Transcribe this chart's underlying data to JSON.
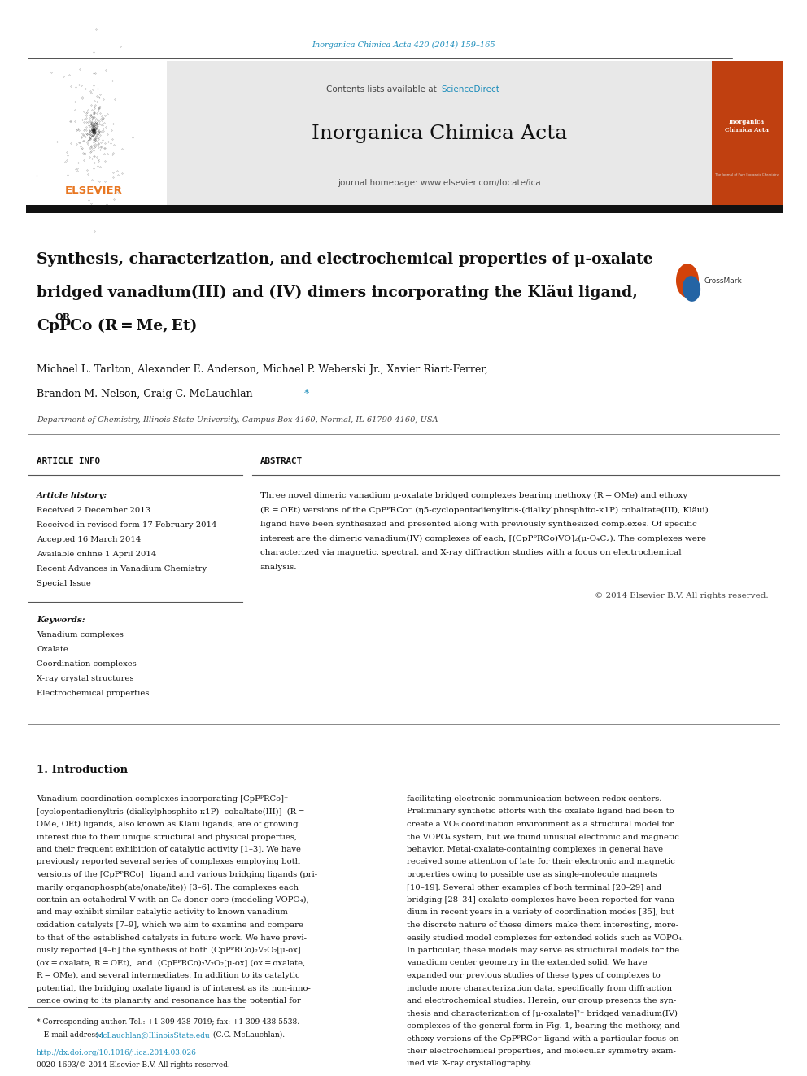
{
  "page_width": 9.92,
  "page_height": 13.23,
  "dpi": 100,
  "bg_color": "#ffffff",
  "journal_ref": "Inorganica Chimica Acta 420 (2014) 159–165",
  "journal_ref_color": "#1a8cba",
  "journal_name": "Inorganica Chimica Acta",
  "sciencedirect_color": "#1a8cba",
  "homepage_line": "journal homepage: www.elsevier.com/locate/ica",
  "elsevier_text": "ELSEVIER",
  "elsevier_color": "#e87722",
  "title_line1": "Synthesis, characterization, and electrochemical properties of μ-oxalate",
  "title_line2": "bridged vanadium(III) and (IV) dimers incorporating the Kläui ligand,",
  "title_line3_pre": "CpP",
  "title_line3_sup": "OR",
  "title_line3_post": "Co (R = Me, Et)",
  "authors_line1": "Michael L. Tarlton, Alexander E. Anderson, Michael P. Weberski Jr., Xavier Riart-Ferrer,",
  "authors_line2": "Brandon M. Nelson, Craig C. McLauchlan *",
  "affiliation": "Department of Chemistry, Illinois State University, Campus Box 4160, Normal, IL 61790-4160, USA",
  "article_info_header": "ARTICLE INFO",
  "abstract_header": "ABSTRACT",
  "article_history_label": "Article history:",
  "history_lines": [
    "Received 2 December 2013",
    "Received in revised form 17 February 2014",
    "Accepted 16 March 2014",
    "Available online 1 April 2014",
    "Recent Advances in Vanadium Chemistry",
    "Special Issue"
  ],
  "keywords_label": "Keywords:",
  "keywords": [
    "Vanadium complexes",
    "Oxalate",
    "Coordination complexes",
    "X-ray crystal structures",
    "Electrochemical properties"
  ],
  "abstract_lines": [
    "Three novel dimeric vanadium μ-oxalate bridged complexes bearing methoxy (R = OMe) and ethoxy",
    "(R = OEt) versions of the CpPᴾRCo⁻ (η5-cyclopentadienyltris-(dialkylphosphito-κ1P) cobaltate(III), Kläui)",
    "ligand have been synthesized and presented along with previously synthesized complexes. Of specific",
    "interest are the dimeric vanadium(IV) complexes of each, [(CpPᴾRCo)VO]₂(μ-O₄C₂). The complexes were",
    "characterized via magnetic, spectral, and X-ray diffraction studies with a focus on electrochemical",
    "analysis."
  ],
  "copyright": "© 2014 Elsevier B.V. All rights reserved.",
  "intro_header": "1. Introduction",
  "intro_col1_lines": [
    "Vanadium coordination complexes incorporating [CpPᴾRCo]⁻",
    "[cyclopentadienyltris-(dialkylphosphito-κ1P)  cobaltate(III)]  (R =",
    "OMe, OEt) ligands, also known as Kläui ligands, are of growing",
    "interest due to their unique structural and physical properties,",
    "and their frequent exhibition of catalytic activity [1–3]. We have",
    "previously reported several series of complexes employing both",
    "versions of the [CpPᴾRCo]⁻ ligand and various bridging ligands (pri-",
    "marily organophosph(ate/onate/ite)) [3–6]. The complexes each",
    "contain an octahedral V with an O₆ donor core (modeling VOPO₄),",
    "and may exhibit similar catalytic activity to known vanadium",
    "oxidation catalysts [7–9], which we aim to examine and compare",
    "to that of the established catalysts in future work. We have previ-",
    "ously reported [4–6] the synthesis of both (CpPᴾRCo)₂V₂O₂[μ-ox]",
    "(ox = oxalate, R = OEt),  and  (CpPᴾRCo)₂V₂O₂[μ-ox] (ox = oxalate,",
    "R = OMe), and several intermediates. In addition to its catalytic",
    "potential, the bridging oxalate ligand is of interest as its non-inno-",
    "cence owing to its planarity and resonance has the potential for"
  ],
  "intro_col2_lines": [
    "facilitating electronic communication between redox centers.",
    "Preliminary synthetic efforts with the oxalate ligand had been to",
    "create a VO₆ coordination environment as a structural model for",
    "the VOPO₄ system, but we found unusual electronic and magnetic",
    "behavior. Metal-oxalate-containing complexes in general have",
    "received some attention of late for their electronic and magnetic",
    "properties owing to possible use as single-molecule magnets",
    "[10–19]. Several other examples of both terminal [20–29] and",
    "bridging [28–34] oxalato complexes have been reported for vana-",
    "dium in recent years in a variety of coordination modes [35], but",
    "the discrete nature of these dimers make them interesting, more-",
    "easily studied model complexes for extended solids such as VOPO₄.",
    "In particular, these models may serve as structural models for the",
    "vanadium center geometry in the extended solid. We have",
    "expanded our previous studies of these types of complexes to",
    "include more characterization data, specifically from diffraction",
    "and electrochemical studies. Herein, our group presents the syn-",
    "thesis and characterization of [μ-oxalate]²⁻ bridged vanadium(IV)",
    "complexes of the general form in Fig. 1, bearing the methoxy, and",
    "ethoxy versions of the CpPᴾRCo⁻ ligand with a particular focus on",
    "their electrochemical properties, and molecular symmetry exam-",
    "ined via X-ray crystallography."
  ],
  "footnote1": "* Corresponding author. Tel.: +1 309 438 7019; fax: +1 309 438 5538.",
  "footnote2_pre": "   E-mail address: ",
  "footnote2_link": "McLauchlan@IllinoisState.edu",
  "footnote2_post": " (C.C. McLauchlan).",
  "doi_line": "http://dx.doi.org/10.1016/j.ica.2014.03.026",
  "issn_line": "0020-1693/© 2014 Elsevier B.V. All rights reserved.",
  "crossmark_orange": "#d2420a",
  "crossmark_blue": "#2464a4",
  "gray_header_bg": "#e8e8e8",
  "cover_bg": "#c04010",
  "thick_bar_color": "#111111",
  "line_color": "#888888",
  "dark_line_color": "#555555"
}
